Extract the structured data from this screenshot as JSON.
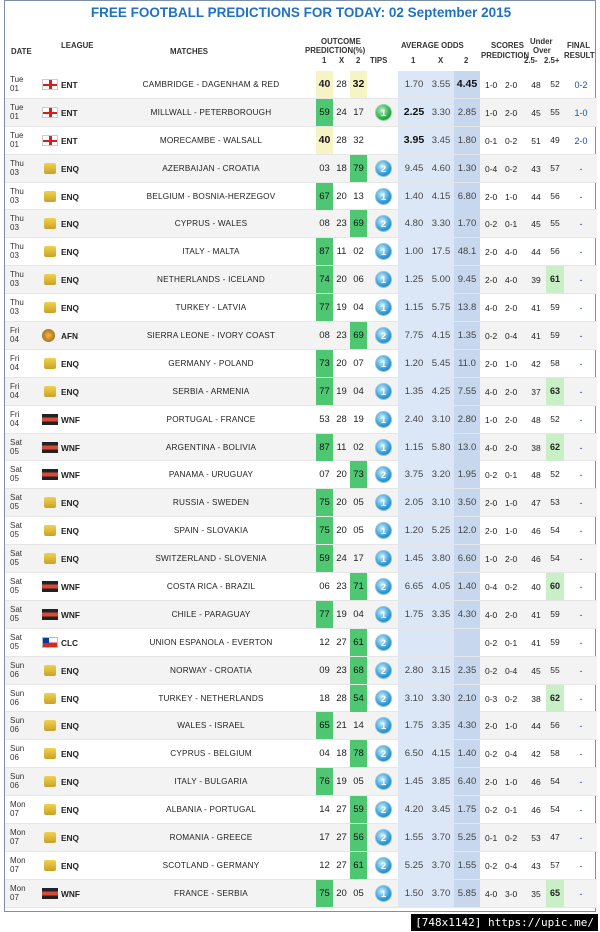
{
  "title": "FREE FOOTBALL PREDICTIONS FOR TODAY: 02 September 2015",
  "headers": {
    "date": "DATE",
    "league": "LEAGUE",
    "matches": "MATCHES",
    "outcome1": "OUTCOME",
    "outcome2": "PREDICTION(%)",
    "h1": "1",
    "hX": "X",
    "h2": "2",
    "tips": "TIPS",
    "avg": "AVERAGE ODDS",
    "o1": "1",
    "oX": "X",
    "o2": "2",
    "scores1": "SCORES",
    "scores2": "PREDICTION",
    "uo1": "Under",
    "uo2": "Over",
    "u25": "2.5-",
    "o25": "2.5+",
    "final1": "FINAL",
    "final2": "RESULT"
  },
  "watermark": "[748x1142] https://upic.me/",
  "rows": [
    {
      "d": "Tue",
      "n": "01",
      "flag": "eng",
      "lg": "ENT",
      "m": "CAMBRIDGE - DAGENHAM & RED",
      "p": [
        "40",
        "28",
        "32"
      ],
      "hi": 2,
      "yel": true,
      "tip": "",
      "o": [
        "1.70",
        "3.55",
        "4.45"
      ],
      "ob": 2,
      "s": [
        "1-0",
        "2-0"
      ],
      "u": "48",
      "ov": "52",
      "ovh": false,
      "r": "0-2"
    },
    {
      "d": "Tue",
      "n": "01",
      "flag": "eng",
      "lg": "ENT",
      "m": "MILLWALL - PETERBOROUGH",
      "p": [
        "59",
        "24",
        "17"
      ],
      "hi": 0,
      "yel": false,
      "tip": "1",
      "tg": true,
      "o": [
        "2.25",
        "3.30",
        "2.85"
      ],
      "ob": 0,
      "s": [
        "1-0",
        "2-0"
      ],
      "u": "45",
      "ov": "55",
      "ovh": false,
      "r": "1-0"
    },
    {
      "d": "Tue",
      "n": "01",
      "flag": "eng",
      "lg": "ENT",
      "m": "MORECAMBE - WALSALL",
      "p": [
        "40",
        "28",
        "32"
      ],
      "hi": 0,
      "yel": true,
      "tip": "",
      "o": [
        "3.95",
        "3.45",
        "1.80"
      ],
      "ob": 0,
      "s": [
        "0-1",
        "0-2"
      ],
      "u": "51",
      "ov": "49",
      "ovh": false,
      "r": "2-0"
    },
    {
      "d": "Thu",
      "n": "03",
      "flag": "fifa",
      "lg": "ENQ",
      "m": "AZERBAIJAN - CROATIA",
      "p": [
        "03",
        "18",
        "79"
      ],
      "hi": 2,
      "tip": "2",
      "o": [
        "9.45",
        "4.60",
        "1.30"
      ],
      "ob": -1,
      "s": [
        "0-4",
        "0-2"
      ],
      "u": "43",
      "ov": "57",
      "ovh": false,
      "r": "-"
    },
    {
      "d": "Thu",
      "n": "03",
      "flag": "fifa",
      "lg": "ENQ",
      "m": "BELGIUM - BOSNIA-HERZEGOV",
      "p": [
        "67",
        "20",
        "13"
      ],
      "hi": 0,
      "tip": "1",
      "o": [
        "1.40",
        "4.15",
        "6.80"
      ],
      "ob": -1,
      "s": [
        "2-0",
        "1-0"
      ],
      "u": "44",
      "ov": "56",
      "ovh": false,
      "r": "-"
    },
    {
      "d": "Thu",
      "n": "03",
      "flag": "fifa",
      "lg": "ENQ",
      "m": "CYPRUS - WALES",
      "p": [
        "08",
        "23",
        "69"
      ],
      "hi": 2,
      "tip": "2",
      "o": [
        "4.80",
        "3.30",
        "1.70"
      ],
      "ob": -1,
      "s": [
        "0-2",
        "0-1"
      ],
      "u": "45",
      "ov": "55",
      "ovh": false,
      "r": "-"
    },
    {
      "d": "Thu",
      "n": "03",
      "flag": "fifa",
      "lg": "ENQ",
      "m": "ITALY - MALTA",
      "p": [
        "87",
        "11",
        "02"
      ],
      "hi": 0,
      "tip": "1",
      "o": [
        "1.00",
        "17.5",
        "48.1"
      ],
      "ob": -1,
      "s": [
        "2-0",
        "4-0"
      ],
      "u": "44",
      "ov": "56",
      "ovh": false,
      "r": "-"
    },
    {
      "d": "Thu",
      "n": "03",
      "flag": "fifa",
      "lg": "ENQ",
      "m": "NETHERLANDS - ICELAND",
      "p": [
        "74",
        "20",
        "06"
      ],
      "hi": 0,
      "tip": "1",
      "o": [
        "1.25",
        "5.00",
        "9.45"
      ],
      "ob": -1,
      "s": [
        "2-0",
        "4-0"
      ],
      "u": "39",
      "ov": "61",
      "ovh": true,
      "r": "-"
    },
    {
      "d": "Thu",
      "n": "03",
      "flag": "fifa",
      "lg": "ENQ",
      "m": "TURKEY - LATVIA",
      "p": [
        "77",
        "19",
        "04"
      ],
      "hi": 0,
      "tip": "1",
      "o": [
        "1.15",
        "5.75",
        "13.8"
      ],
      "ob": -1,
      "s": [
        "4-0",
        "2-0"
      ],
      "u": "41",
      "ov": "59",
      "ovh": false,
      "r": "-"
    },
    {
      "d": "Fri",
      "n": "04",
      "flag": "caf",
      "lg": "AFN",
      "m": "SIERRA LEONE - IVORY COAST",
      "p": [
        "08",
        "23",
        "69"
      ],
      "hi": 2,
      "tip": "2",
      "o": [
        "7.75",
        "4.15",
        "1.35"
      ],
      "ob": -1,
      "s": [
        "0-2",
        "0-4"
      ],
      "u": "41",
      "ov": "59",
      "ovh": false,
      "r": "-"
    },
    {
      "d": "Fri",
      "n": "04",
      "flag": "fifa",
      "lg": "ENQ",
      "m": "GERMANY - POLAND",
      "p": [
        "73",
        "20",
        "07"
      ],
      "hi": 0,
      "tip": "1",
      "o": [
        "1.20",
        "5.45",
        "11.0"
      ],
      "ob": -1,
      "s": [
        "2-0",
        "1-0"
      ],
      "u": "42",
      "ov": "58",
      "ovh": false,
      "r": "-"
    },
    {
      "d": "Fri",
      "n": "04",
      "flag": "fifa",
      "lg": "ENQ",
      "m": "SERBIA - ARMENIA",
      "p": [
        "77",
        "19",
        "04"
      ],
      "hi": 0,
      "tip": "1",
      "o": [
        "1.35",
        "4.25",
        "7.55"
      ],
      "ob": -1,
      "s": [
        "4-0",
        "2-0"
      ],
      "u": "37",
      "ov": "63",
      "ovh": true,
      "r": "-"
    },
    {
      "d": "Fri",
      "n": "04",
      "flag": "wnf",
      "lg": "WNF",
      "m": "PORTUGAL - FRANCE",
      "p": [
        "53",
        "28",
        "19"
      ],
      "hi": -1,
      "tip": "1",
      "o": [
        "2.40",
        "3.10",
        "2.80"
      ],
      "ob": -1,
      "s": [
        "1-0",
        "2-0"
      ],
      "u": "48",
      "ov": "52",
      "ovh": false,
      "r": "-"
    },
    {
      "d": "Sat",
      "n": "05",
      "flag": "wnf",
      "lg": "WNF",
      "m": "ARGENTINA - BOLIVIA",
      "p": [
        "87",
        "11",
        "02"
      ],
      "hi": 0,
      "tip": "1",
      "o": [
        "1.15",
        "5.80",
        "13.0"
      ],
      "ob": -1,
      "s": [
        "4-0",
        "2-0"
      ],
      "u": "38",
      "ov": "62",
      "ovh": true,
      "r": "-"
    },
    {
      "d": "Sat",
      "n": "05",
      "flag": "wnf",
      "lg": "WNF",
      "m": "PANAMA - URUGUAY",
      "p": [
        "07",
        "20",
        "73"
      ],
      "hi": 2,
      "tip": "2",
      "o": [
        "3.75",
        "3.20",
        "1.95"
      ],
      "ob": -1,
      "s": [
        "0-2",
        "0-1"
      ],
      "u": "48",
      "ov": "52",
      "ovh": false,
      "r": "-"
    },
    {
      "d": "Sat",
      "n": "05",
      "flag": "fifa",
      "lg": "ENQ",
      "m": "RUSSIA - SWEDEN",
      "p": [
        "75",
        "20",
        "05"
      ],
      "hi": 0,
      "tip": "1",
      "o": [
        "2.05",
        "3.10",
        "3.50"
      ],
      "ob": -1,
      "s": [
        "2-0",
        "1-0"
      ],
      "u": "47",
      "ov": "53",
      "ovh": false,
      "r": "-"
    },
    {
      "d": "Sat",
      "n": "05",
      "flag": "fifa",
      "lg": "ENQ",
      "m": "SPAIN - SLOVAKIA",
      "p": [
        "75",
        "20",
        "05"
      ],
      "hi": 0,
      "tip": "1",
      "o": [
        "1.20",
        "5.25",
        "12.0"
      ],
      "ob": -1,
      "s": [
        "2-0",
        "1-0"
      ],
      "u": "46",
      "ov": "54",
      "ovh": false,
      "r": "-"
    },
    {
      "d": "Sat",
      "n": "05",
      "flag": "fifa",
      "lg": "ENQ",
      "m": "SWITZERLAND - SLOVENIA",
      "p": [
        "59",
        "24",
        "17"
      ],
      "hi": 0,
      "tip": "1",
      "o": [
        "1.45",
        "3.80",
        "6.60"
      ],
      "ob": -1,
      "s": [
        "1-0",
        "2-0"
      ],
      "u": "46",
      "ov": "54",
      "ovh": false,
      "r": "-"
    },
    {
      "d": "Sat",
      "n": "05",
      "flag": "wnf",
      "lg": "WNF",
      "m": "COSTA RICA - BRAZIL",
      "p": [
        "06",
        "23",
        "71"
      ],
      "hi": 2,
      "tip": "2",
      "o": [
        "6.65",
        "4.05",
        "1.40"
      ],
      "ob": -1,
      "s": [
        "0-4",
        "0-2"
      ],
      "u": "40",
      "ov": "60",
      "ovh": true,
      "r": "-"
    },
    {
      "d": "Sat",
      "n": "05",
      "flag": "wnf",
      "lg": "WNF",
      "m": "CHILE - PARAGUAY",
      "p": [
        "77",
        "19",
        "04"
      ],
      "hi": 0,
      "tip": "1",
      "o": [
        "1.75",
        "3.35",
        "4.30"
      ],
      "ob": -1,
      "s": [
        "4-0",
        "2-0"
      ],
      "u": "41",
      "ov": "59",
      "ovh": false,
      "r": "-"
    },
    {
      "d": "Sat",
      "n": "05",
      "flag": "chile",
      "lg": "CLC",
      "m": "UNION ESPANOLA - EVERTON",
      "p": [
        "12",
        "27",
        "61"
      ],
      "hi": 2,
      "tip": "2",
      "o": [
        "",
        "",
        ""
      ],
      "ob": -1,
      "s": [
        "0-2",
        "0-1"
      ],
      "u": "41",
      "ov": "59",
      "ovh": false,
      "r": "-"
    },
    {
      "d": "Sun",
      "n": "06",
      "flag": "fifa",
      "lg": "ENQ",
      "m": "NORWAY - CROATIA",
      "p": [
        "09",
        "23",
        "68"
      ],
      "hi": 2,
      "tip": "2",
      "o": [
        "2.80",
        "3.15",
        "2.35"
      ],
      "ob": -1,
      "s": [
        "0-2",
        "0-4"
      ],
      "u": "45",
      "ov": "55",
      "ovh": false,
      "r": "-"
    },
    {
      "d": "Sun",
      "n": "06",
      "flag": "fifa",
      "lg": "ENQ",
      "m": "TURKEY - NETHERLANDS",
      "p": [
        "18",
        "28",
        "54"
      ],
      "hi": 2,
      "tip": "2",
      "o": [
        "3.10",
        "3.30",
        "2.10"
      ],
      "ob": -1,
      "s": [
        "0-3",
        "0-2"
      ],
      "u": "38",
      "ov": "62",
      "ovh": true,
      "r": "-"
    },
    {
      "d": "Sun",
      "n": "06",
      "flag": "fifa",
      "lg": "ENQ",
      "m": "WALES - ISRAEL",
      "p": [
        "65",
        "21",
        "14"
      ],
      "hi": 0,
      "tip": "1",
      "o": [
        "1.75",
        "3.35",
        "4.30"
      ],
      "ob": -1,
      "s": [
        "2-0",
        "1-0"
      ],
      "u": "44",
      "ov": "56",
      "ovh": false,
      "r": "-"
    },
    {
      "d": "Sun",
      "n": "06",
      "flag": "fifa",
      "lg": "ENQ",
      "m": "CYPRUS - BELGIUM",
      "p": [
        "04",
        "18",
        "78"
      ],
      "hi": 2,
      "tip": "2",
      "o": [
        "6.50",
        "4.15",
        "1.40"
      ],
      "ob": -1,
      "s": [
        "0-2",
        "0-4"
      ],
      "u": "42",
      "ov": "58",
      "ovh": false,
      "r": "-"
    },
    {
      "d": "Sun",
      "n": "06",
      "flag": "fifa",
      "lg": "ENQ",
      "m": "ITALY - BULGARIA",
      "p": [
        "76",
        "19",
        "05"
      ],
      "hi": 0,
      "tip": "1",
      "o": [
        "1.45",
        "3.85",
        "6.40"
      ],
      "ob": -1,
      "s": [
        "2-0",
        "1-0"
      ],
      "u": "46",
      "ov": "54",
      "ovh": false,
      "r": "-"
    },
    {
      "d": "Mon",
      "n": "07",
      "flag": "fifa",
      "lg": "ENQ",
      "m": "ALBANIA - PORTUGAL",
      "p": [
        "14",
        "27",
        "59"
      ],
      "hi": 2,
      "tip": "2",
      "o": [
        "4.20",
        "3.45",
        "1.75"
      ],
      "ob": -1,
      "s": [
        "0-2",
        "0-1"
      ],
      "u": "46",
      "ov": "54",
      "ovh": false,
      "r": "-"
    },
    {
      "d": "Mon",
      "n": "07",
      "flag": "fifa",
      "lg": "ENQ",
      "m": "ROMANIA - GREECE",
      "p": [
        "17",
        "27",
        "56"
      ],
      "hi": 2,
      "tip": "2",
      "o": [
        "1.55",
        "3.70",
        "5.25"
      ],
      "ob": -1,
      "s": [
        "0-1",
        "0-2"
      ],
      "u": "53",
      "ov": "47",
      "ovh": false,
      "r": "-"
    },
    {
      "d": "Mon",
      "n": "07",
      "flag": "fifa",
      "lg": "ENQ",
      "m": "SCOTLAND - GERMANY",
      "p": [
        "12",
        "27",
        "61"
      ],
      "hi": 2,
      "tip": "2",
      "o": [
        "5.25",
        "3.70",
        "1.55"
      ],
      "ob": -1,
      "s": [
        "0-2",
        "0-4"
      ],
      "u": "43",
      "ov": "57",
      "ovh": false,
      "r": "-"
    },
    {
      "d": "Mon",
      "n": "07",
      "flag": "wnf",
      "lg": "WNF",
      "m": "FRANCE - SERBIA",
      "p": [
        "75",
        "20",
        "05"
      ],
      "hi": 0,
      "tip": "1",
      "o": [
        "1.50",
        "3.70",
        "5.85"
      ],
      "ob": -1,
      "s": [
        "4-0",
        "3-0"
      ],
      "u": "35",
      "ov": "65",
      "ovh": true,
      "r": "-"
    }
  ]
}
